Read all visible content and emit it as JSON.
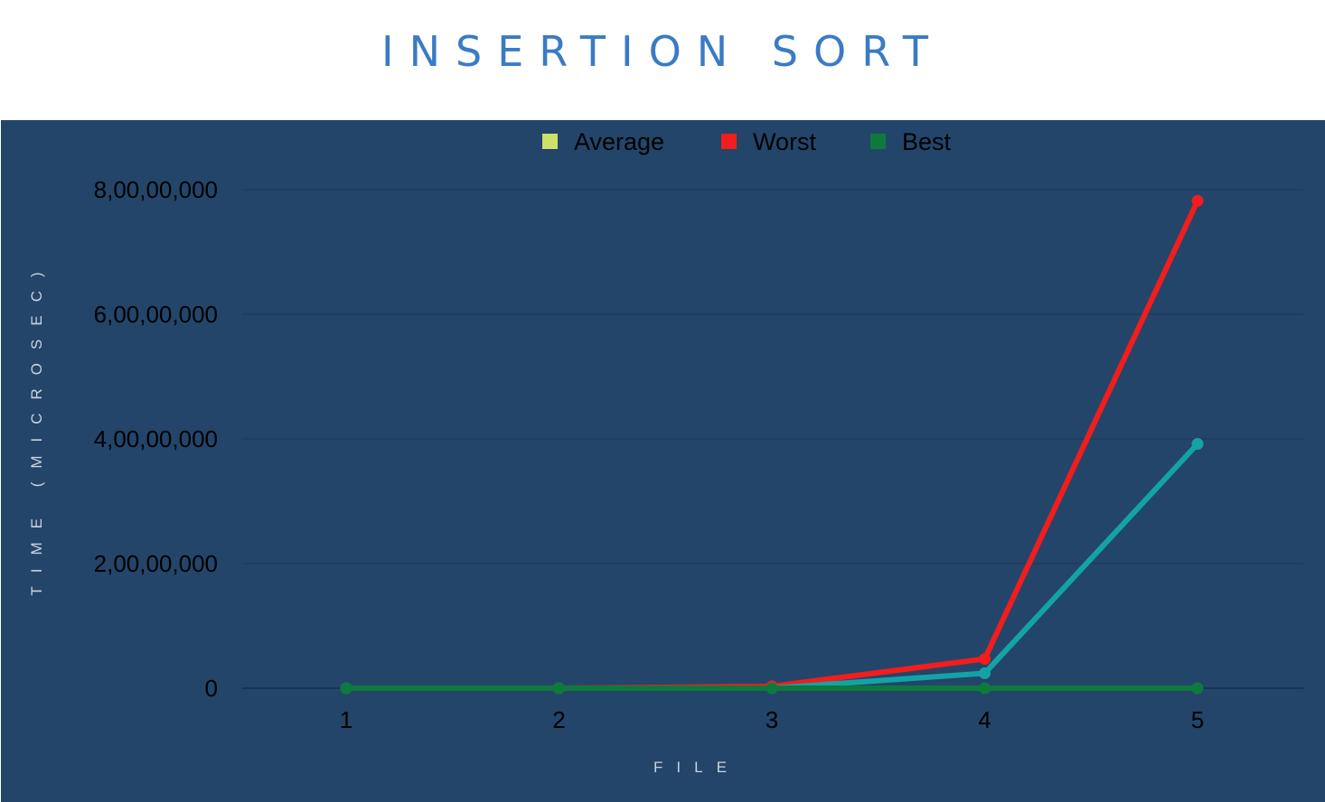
{
  "title": "INSERTION SORT",
  "chart_data": {
    "type": "line",
    "title": "INSERTION SORT",
    "xlabel": "FILE",
    "ylabel": "TIME (MICROSEC)",
    "categories": [
      "1",
      "2",
      "3",
      "4",
      "5"
    ],
    "ylim": [
      0,
      80000000
    ],
    "yticks": [
      0,
      20000000,
      40000000,
      60000000,
      80000000
    ],
    "ytick_labels": [
      "0",
      "2,00,00,000",
      "4,00,00,000",
      "6,00,00,000",
      "8,00,00,000"
    ],
    "grid": true,
    "legend_position": "top",
    "series": [
      {
        "name": "Average",
        "legend_color": "#cde06a",
        "line_color": "#14a3a5",
        "values": [
          0,
          0,
          0,
          2400000,
          39200000
        ]
      },
      {
        "name": "Worst",
        "legend_color": "#f21d1d",
        "line_color": "#f21d1d",
        "values": [
          0,
          0,
          300000,
          4700000,
          78200000
        ]
      },
      {
        "name": "Best",
        "legend_color": "#0d7a3c",
        "line_color": "#0d7a3c",
        "values": [
          0,
          0,
          0,
          0,
          0
        ]
      }
    ]
  }
}
